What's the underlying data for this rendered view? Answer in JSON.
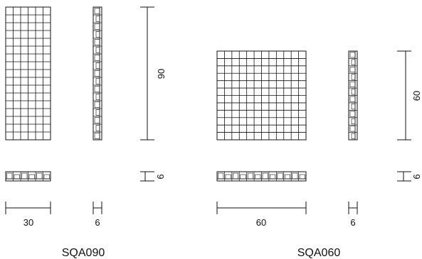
{
  "products": [
    {
      "name": "SQA090",
      "front_grid": {
        "columns": 6,
        "rows": 17
      },
      "dimensions": {
        "width": "30",
        "depth": "6",
        "height": "90",
        "thickness": "6"
      }
    },
    {
      "name": "SQA060",
      "front_grid": {
        "columns": 12,
        "rows": 12
      },
      "dimensions": {
        "width": "60",
        "depth": "6",
        "height": "60",
        "thickness": "6"
      }
    }
  ],
  "line_color": "#111111"
}
